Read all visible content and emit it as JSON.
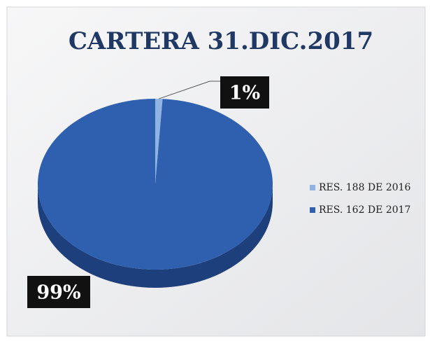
{
  "chart_data": {
    "type": "pie",
    "title": "CARTERA 31.DIC.2017",
    "categories": [
      "RES. 188 DE 2016",
      "RES. 162 DE 2017"
    ],
    "values": [
      1,
      99
    ],
    "value_labels": [
      "1%",
      "99%"
    ],
    "colors": [
      "#8fb4e3",
      "#2f60b0"
    ],
    "legend": "right"
  }
}
